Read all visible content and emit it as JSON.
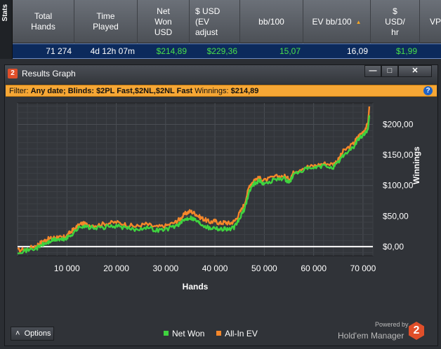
{
  "stats": {
    "side_label": "Stats",
    "columns": [
      {
        "label": "Total\nHands",
        "w": 0
      },
      {
        "label": "Time\nPlayed"
      },
      {
        "label": "Net\nWon\nUSD"
      },
      {
        "label": "$ USD\n(EV\nadjust"
      },
      {
        "label": "bb/100"
      },
      {
        "label": "EV bb/100"
      },
      {
        "label": "$\nUSD/\nhr"
      },
      {
        "label": "VP"
      }
    ],
    "row": {
      "total_hands": "71 274",
      "time_played": "4d 12h 07m",
      "net_won": "$214,89",
      "ev_adjusted": "$229,36",
      "bb100": "15,07",
      "ev_bb100": "16,09",
      "usd_hr": "$1,99"
    }
  },
  "window": {
    "title": "Results Graph",
    "app_badge": "2",
    "minimize": "—",
    "maximize": "□",
    "close": "✕"
  },
  "filter": {
    "label": "Filter:",
    "text": "Any date; Blinds: $2PL Fast,$2NL,$2NL Fast",
    "winnings_label": "Winnings:",
    "winnings_value": "$214,89",
    "help": "?"
  },
  "chart_data": {
    "type": "line",
    "xlabel": "Hands",
    "ylabel": "Winnings",
    "xlim": [
      0,
      72000
    ],
    "ylim": [
      -15,
      235
    ],
    "x_ticks": [
      10000,
      20000,
      30000,
      40000,
      50000,
      60000,
      70000
    ],
    "x_tick_labels": [
      "10 000",
      "20 000",
      "30 000",
      "40 000",
      "50 000",
      "60 000",
      "70 000"
    ],
    "y_ticks": [
      0,
      50,
      100,
      150,
      200
    ],
    "y_tick_labels": [
      "$0,00",
      "$50,00",
      "$100,00",
      "$150,00",
      "$200,00"
    ],
    "grid": true,
    "legend": "bottom",
    "x": [
      0,
      2000,
      4000,
      5000,
      6000,
      7000,
      8000,
      9000,
      10000,
      11000,
      12000,
      13000,
      14000,
      16000,
      18000,
      20000,
      22000,
      24000,
      26000,
      28000,
      30000,
      32000,
      33000,
      34000,
      35000,
      36000,
      37000,
      38000,
      39000,
      40000,
      41000,
      42000,
      43000,
      44000,
      45000,
      46000,
      47000,
      48000,
      49000,
      50000,
      52000,
      54000,
      55000,
      56000,
      58000,
      60000,
      62000,
      64000,
      65000,
      66000,
      68000,
      69000,
      70000,
      71000,
      71274
    ],
    "series": [
      {
        "name": "Net Won",
        "color": "#3fd43f",
        "values": [
          -8,
          -6,
          -2,
          3,
          6,
          10,
          12,
          11,
          14,
          20,
          28,
          34,
          32,
          30,
          32,
          34,
          30,
          28,
          32,
          27,
          28,
          34,
          38,
          45,
          48,
          44,
          38,
          34,
          30,
          32,
          28,
          30,
          28,
          32,
          46,
          62,
          92,
          104,
          108,
          102,
          110,
          112,
          104,
          118,
          126,
          128,
          132,
          130,
          138,
          150,
          162,
          175,
          182,
          192,
          214.89
        ]
      },
      {
        "name": "All-In EV",
        "color": "#f5872a",
        "values": [
          -6,
          -4,
          3,
          8,
          12,
          14,
          16,
          14,
          18,
          26,
          32,
          38,
          36,
          35,
          38,
          40,
          36,
          33,
          37,
          32,
          34,
          40,
          46,
          54,
          58,
          54,
          48,
          44,
          40,
          42,
          38,
          40,
          38,
          42,
          55,
          70,
          100,
          110,
          112,
          108,
          114,
          116,
          110,
          122,
          130,
          132,
          136,
          135,
          142,
          156,
          168,
          180,
          188,
          200,
          229.36
        ]
      }
    ]
  },
  "bottom": {
    "options_label": "Options",
    "options_arrow": "˄",
    "legend_net_won": "Net Won",
    "legend_allin_ev": "All-In EV",
    "net_won_color": "#3fd43f",
    "allin_ev_color": "#f5872a",
    "powered_by": "Powered by",
    "brand": "Hold'em Manager",
    "brand_badge": "2"
  }
}
